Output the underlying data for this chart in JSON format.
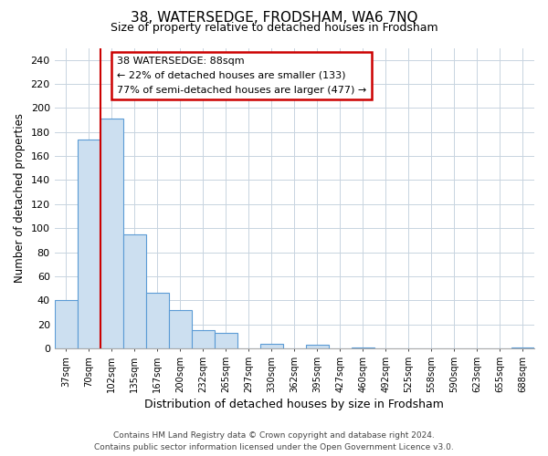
{
  "title": "38, WATERSEDGE, FRODSHAM, WA6 7NQ",
  "subtitle": "Size of property relative to detached houses in Frodsham",
  "xlabel": "Distribution of detached houses by size in Frodsham",
  "ylabel": "Number of detached properties",
  "bar_labels": [
    "37sqm",
    "70sqm",
    "102sqm",
    "135sqm",
    "167sqm",
    "200sqm",
    "232sqm",
    "265sqm",
    "297sqm",
    "330sqm",
    "362sqm",
    "395sqm",
    "427sqm",
    "460sqm",
    "492sqm",
    "525sqm",
    "558sqm",
    "590sqm",
    "623sqm",
    "655sqm",
    "688sqm"
  ],
  "bar_values": [
    40,
    174,
    191,
    95,
    46,
    32,
    15,
    13,
    0,
    4,
    0,
    3,
    0,
    1,
    0,
    0,
    0,
    0,
    0,
    0,
    1
  ],
  "bar_color": "#ccdff0",
  "bar_edge_color": "#5b9bd5",
  "annotation_box_title": "38 WATERSEDGE: 88sqm",
  "annotation_line1": "← 22% of detached houses are smaller (133)",
  "annotation_line2": "77% of semi-detached houses are larger (477) →",
  "annotation_box_color": "#ffffff",
  "annotation_box_edge": "#cc0000",
  "vline_x": 1.5,
  "vline_color": "#cc0000",
  "ylim": [
    0,
    250
  ],
  "yticks": [
    0,
    20,
    40,
    60,
    80,
    100,
    120,
    140,
    160,
    180,
    200,
    220,
    240
  ],
  "footer_line1": "Contains HM Land Registry data © Crown copyright and database right 2024.",
  "footer_line2": "Contains public sector information licensed under the Open Government Licence v3.0.",
  "background_color": "#ffffff",
  "grid_color": "#c8d4e0"
}
